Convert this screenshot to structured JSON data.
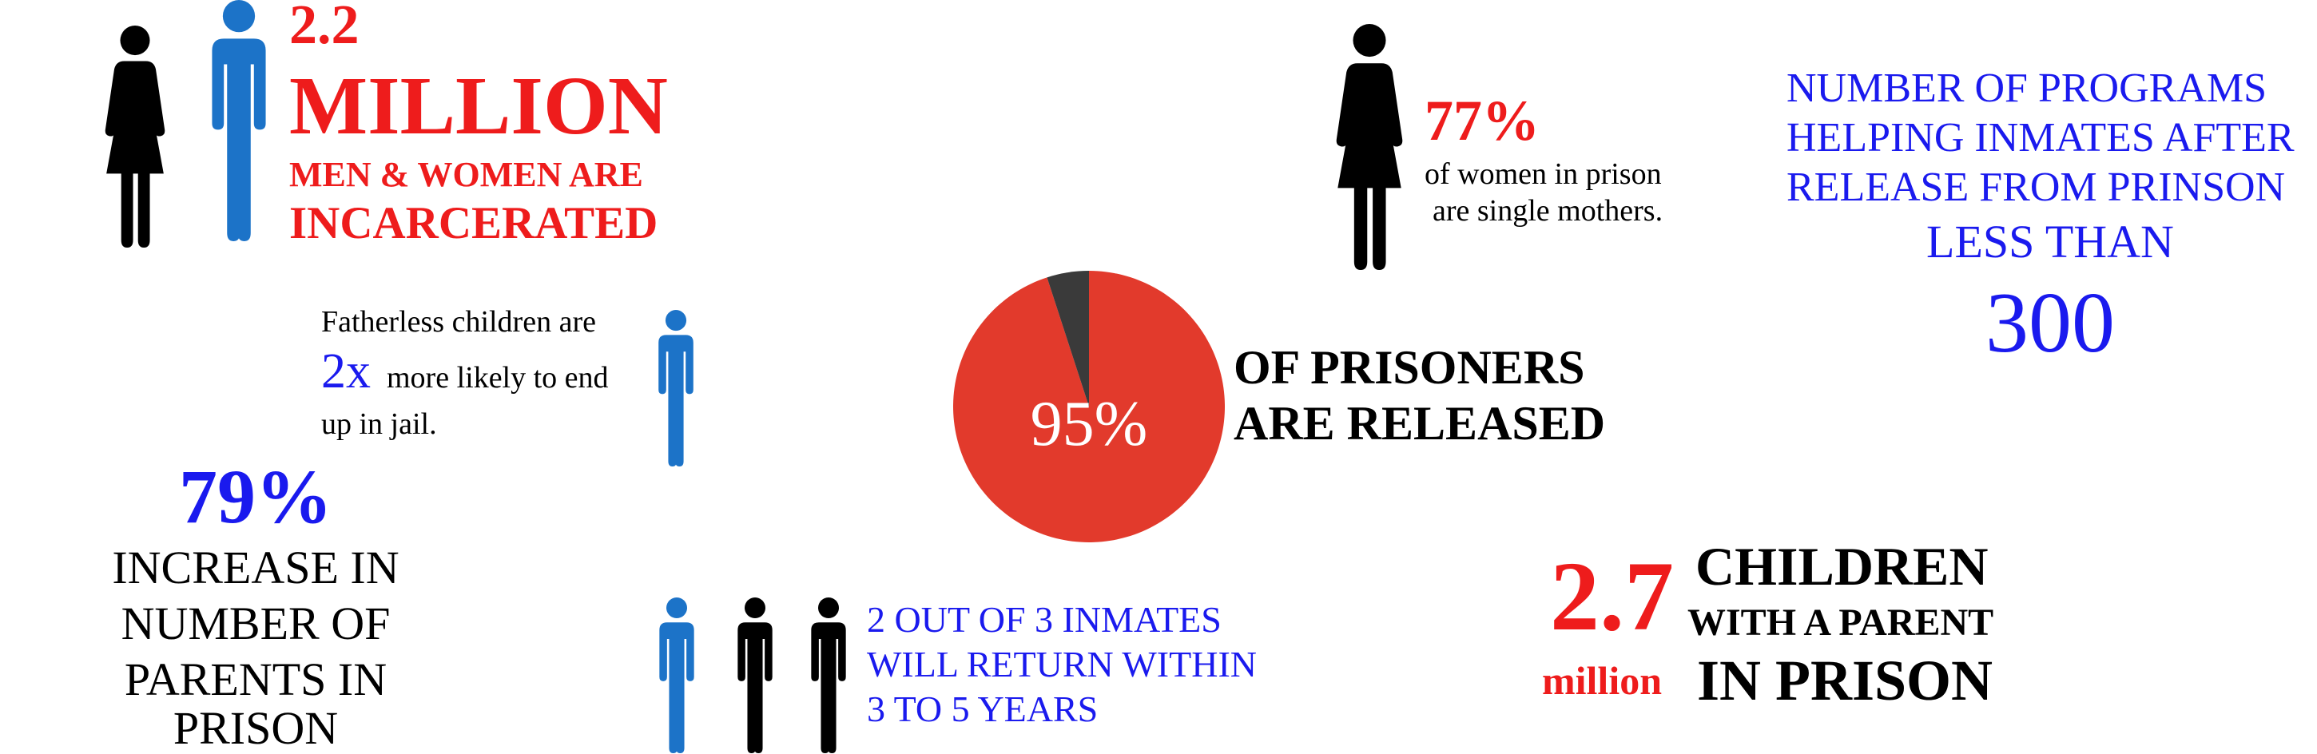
{
  "colors": {
    "red": "#ee1c1c",
    "blue": "#1a1aee",
    "icon_blue": "#1c73c8",
    "pie_red": "#e23a2c",
    "pie_dark": "#3a3a3a",
    "black": "#000000"
  },
  "incarcerated": {
    "number": "2.2",
    "unit": "MILLION",
    "line1": "MEN & WOMEN ARE",
    "line2": "INCARCERATED",
    "icons": [
      "woman-icon",
      "man-icon"
    ]
  },
  "single_mothers": {
    "percent": "77%",
    "line1": "of women in prison",
    "line2": "are single mothers.",
    "icon": "woman-icon"
  },
  "programs": {
    "line1": "NUMBER OF PROGRAMS",
    "line2": "HELPING INMATES AFTER",
    "line3": "RELEASE FROM PRINSON",
    "line4": "LESS THAN",
    "number": "300"
  },
  "fatherless": {
    "line1": "Fatherless children are",
    "multiplier": "2x",
    "line2": "more likely to end",
    "line3": "up in jail.",
    "icon": "man-icon"
  },
  "released": {
    "percent_label": "95%",
    "released_fraction": 0.95,
    "line1": "OF PRISONERS",
    "line2": "ARE RELEASED"
  },
  "parents_increase": {
    "percent": "79%",
    "line1": "INCREASE IN",
    "line2": "NUMBER OF",
    "line3": "PARENTS IN",
    "line4": "PRISON"
  },
  "recidivism": {
    "line1": "2 OUT OF 3 INMATES",
    "line2": "WILL RETURN WITHIN",
    "line3": "3 TO 5 YEARS",
    "icons": [
      "man-icon",
      "man-icon",
      "man-icon"
    ]
  },
  "children": {
    "number": "2.7",
    "unit": "million",
    "line1": "CHILDREN",
    "line2": "WITH A PARENT",
    "line3": "IN PRISON"
  }
}
